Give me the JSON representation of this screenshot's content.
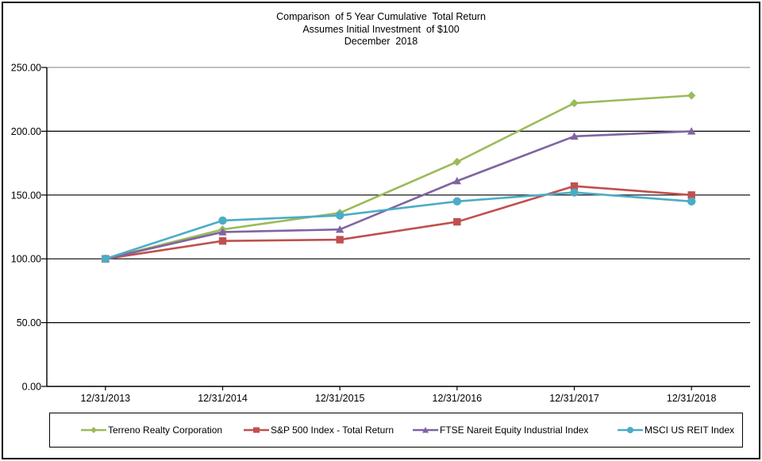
{
  "title": {
    "line1": "Comparison  of 5 Year Cumulative  Total Return",
    "line2": "Assumes Initial Investment  of $100",
    "line3": "December  2018"
  },
  "chart_data": {
    "type": "line",
    "x": [
      "12/31/2013",
      "12/31/2014",
      "12/31/2015",
      "12/31/2016",
      "12/31/2017",
      "12/31/2018"
    ],
    "series": [
      {
        "name": "Terreno Realty Corporation",
        "color": "#9BBB59",
        "marker": "diamond",
        "values": [
          100.0,
          123.0,
          136.0,
          176.0,
          222.0,
          228.0
        ]
      },
      {
        "name": "S&P 500 Index - Total Return",
        "color": "#C0504D",
        "marker": "square",
        "values": [
          100.0,
          114.0,
          115.0,
          129.0,
          157.0,
          150.0
        ]
      },
      {
        "name": "FTSE Nareit Equity Industrial Index",
        "color": "#8064A2",
        "marker": "triangle",
        "values": [
          100.0,
          121.0,
          123.0,
          161.0,
          196.0,
          200.0
        ]
      },
      {
        "name": "MSCI US REIT Index",
        "color": "#4BACC6",
        "marker": "circle",
        "values": [
          100.0,
          130.0,
          134.0,
          145.0,
          152.0,
          145.0
        ]
      }
    ],
    "ylim": [
      0,
      250
    ],
    "ytick_step": 50,
    "y_tick_labels": [
      "0.00",
      "50.00",
      "100.00",
      "150.00",
      "200.00",
      "250.00"
    ],
    "grid": true,
    "legend_position": "bottom"
  },
  "colors": {
    "background": "#FFFFFF",
    "gridline": "#000000",
    "top_gridline": "#9B9B9B",
    "axis": "#000000",
    "border": "#000000",
    "text": "#000000"
  }
}
